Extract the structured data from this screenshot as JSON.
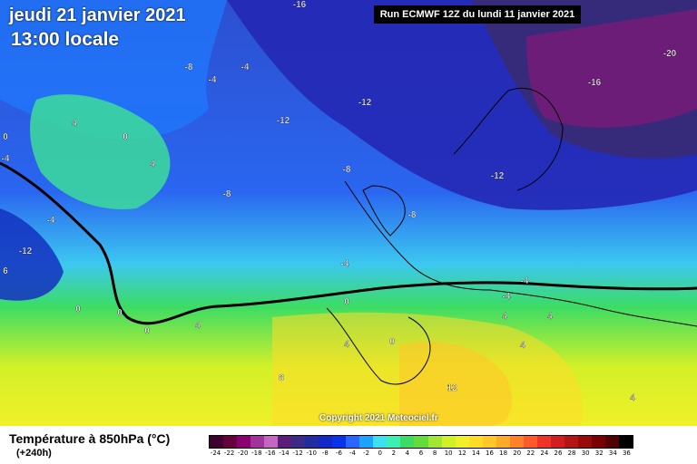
{
  "header": {
    "date": "jeudi 21 janvier 2021",
    "time": "13:00 locale",
    "run": "Run ECMWF 12Z du lundi 11 janvier 2021"
  },
  "copyright": "Copyright 2021 Meteociel.fr",
  "legend": {
    "title": "Température à 850hPa (°C)",
    "lead_time": "(+240h)",
    "ticks": [
      "-24",
      "-22",
      "-20",
      "-18",
      "-16",
      "-14",
      "-12",
      "-10",
      "-8",
      "-6",
      "-4",
      "-2",
      "0",
      "2",
      "4",
      "6",
      "8",
      "10",
      "12",
      "14",
      "16",
      "18",
      "20",
      "22",
      "24",
      "26",
      "28",
      "30",
      "32",
      "34",
      "36"
    ],
    "colors": [
      "#3d0030",
      "#64003c",
      "#8a0070",
      "#a3339c",
      "#c266c0",
      "#5a1e78",
      "#3b2a8a",
      "#232da0",
      "#1428c8",
      "#0a32e6",
      "#2866ff",
      "#1ea4ff",
      "#3ce0f0",
      "#3cf0b4",
      "#3cdc64",
      "#64dc3c",
      "#a0e632",
      "#d2f028",
      "#f0f028",
      "#ffdc28",
      "#ffc828",
      "#ffaa28",
      "#ff8228",
      "#ff5a28",
      "#f03228",
      "#d21e1e",
      "#b41414",
      "#960a0a",
      "#780000",
      "#500000",
      "#000000"
    ]
  },
  "map_labels": [
    {
      "text": "-16"
    },
    {
      "text": "-20"
    },
    {
      "text": "-8"
    },
    {
      "text": "-4"
    },
    {
      "text": "-4"
    },
    {
      "text": "-16"
    },
    {
      "text": "-12"
    },
    {
      "text": "-12"
    },
    {
      "text": "4"
    },
    {
      "text": "0"
    },
    {
      "text": "0"
    },
    {
      "text": "4"
    },
    {
      "text": "-4"
    },
    {
      "text": "-8"
    },
    {
      "text": "-8"
    },
    {
      "text": "-12"
    },
    {
      "text": "-8"
    },
    {
      "text": "-4"
    },
    {
      "text": "-12"
    },
    {
      "text": "6"
    },
    {
      "text": "-4"
    },
    {
      "text": "0"
    },
    {
      "text": "0"
    },
    {
      "text": "0"
    },
    {
      "text": "0"
    },
    {
      "text": "4"
    },
    {
      "text": "4"
    },
    {
      "text": "0"
    },
    {
      "text": "4"
    },
    {
      "text": "4"
    },
    {
      "text": "4"
    },
    {
      "text": "8"
    },
    {
      "text": "12"
    },
    {
      "text": "4"
    },
    {
      "text": "-4"
    },
    {
      "text": "-4"
    }
  ]
}
